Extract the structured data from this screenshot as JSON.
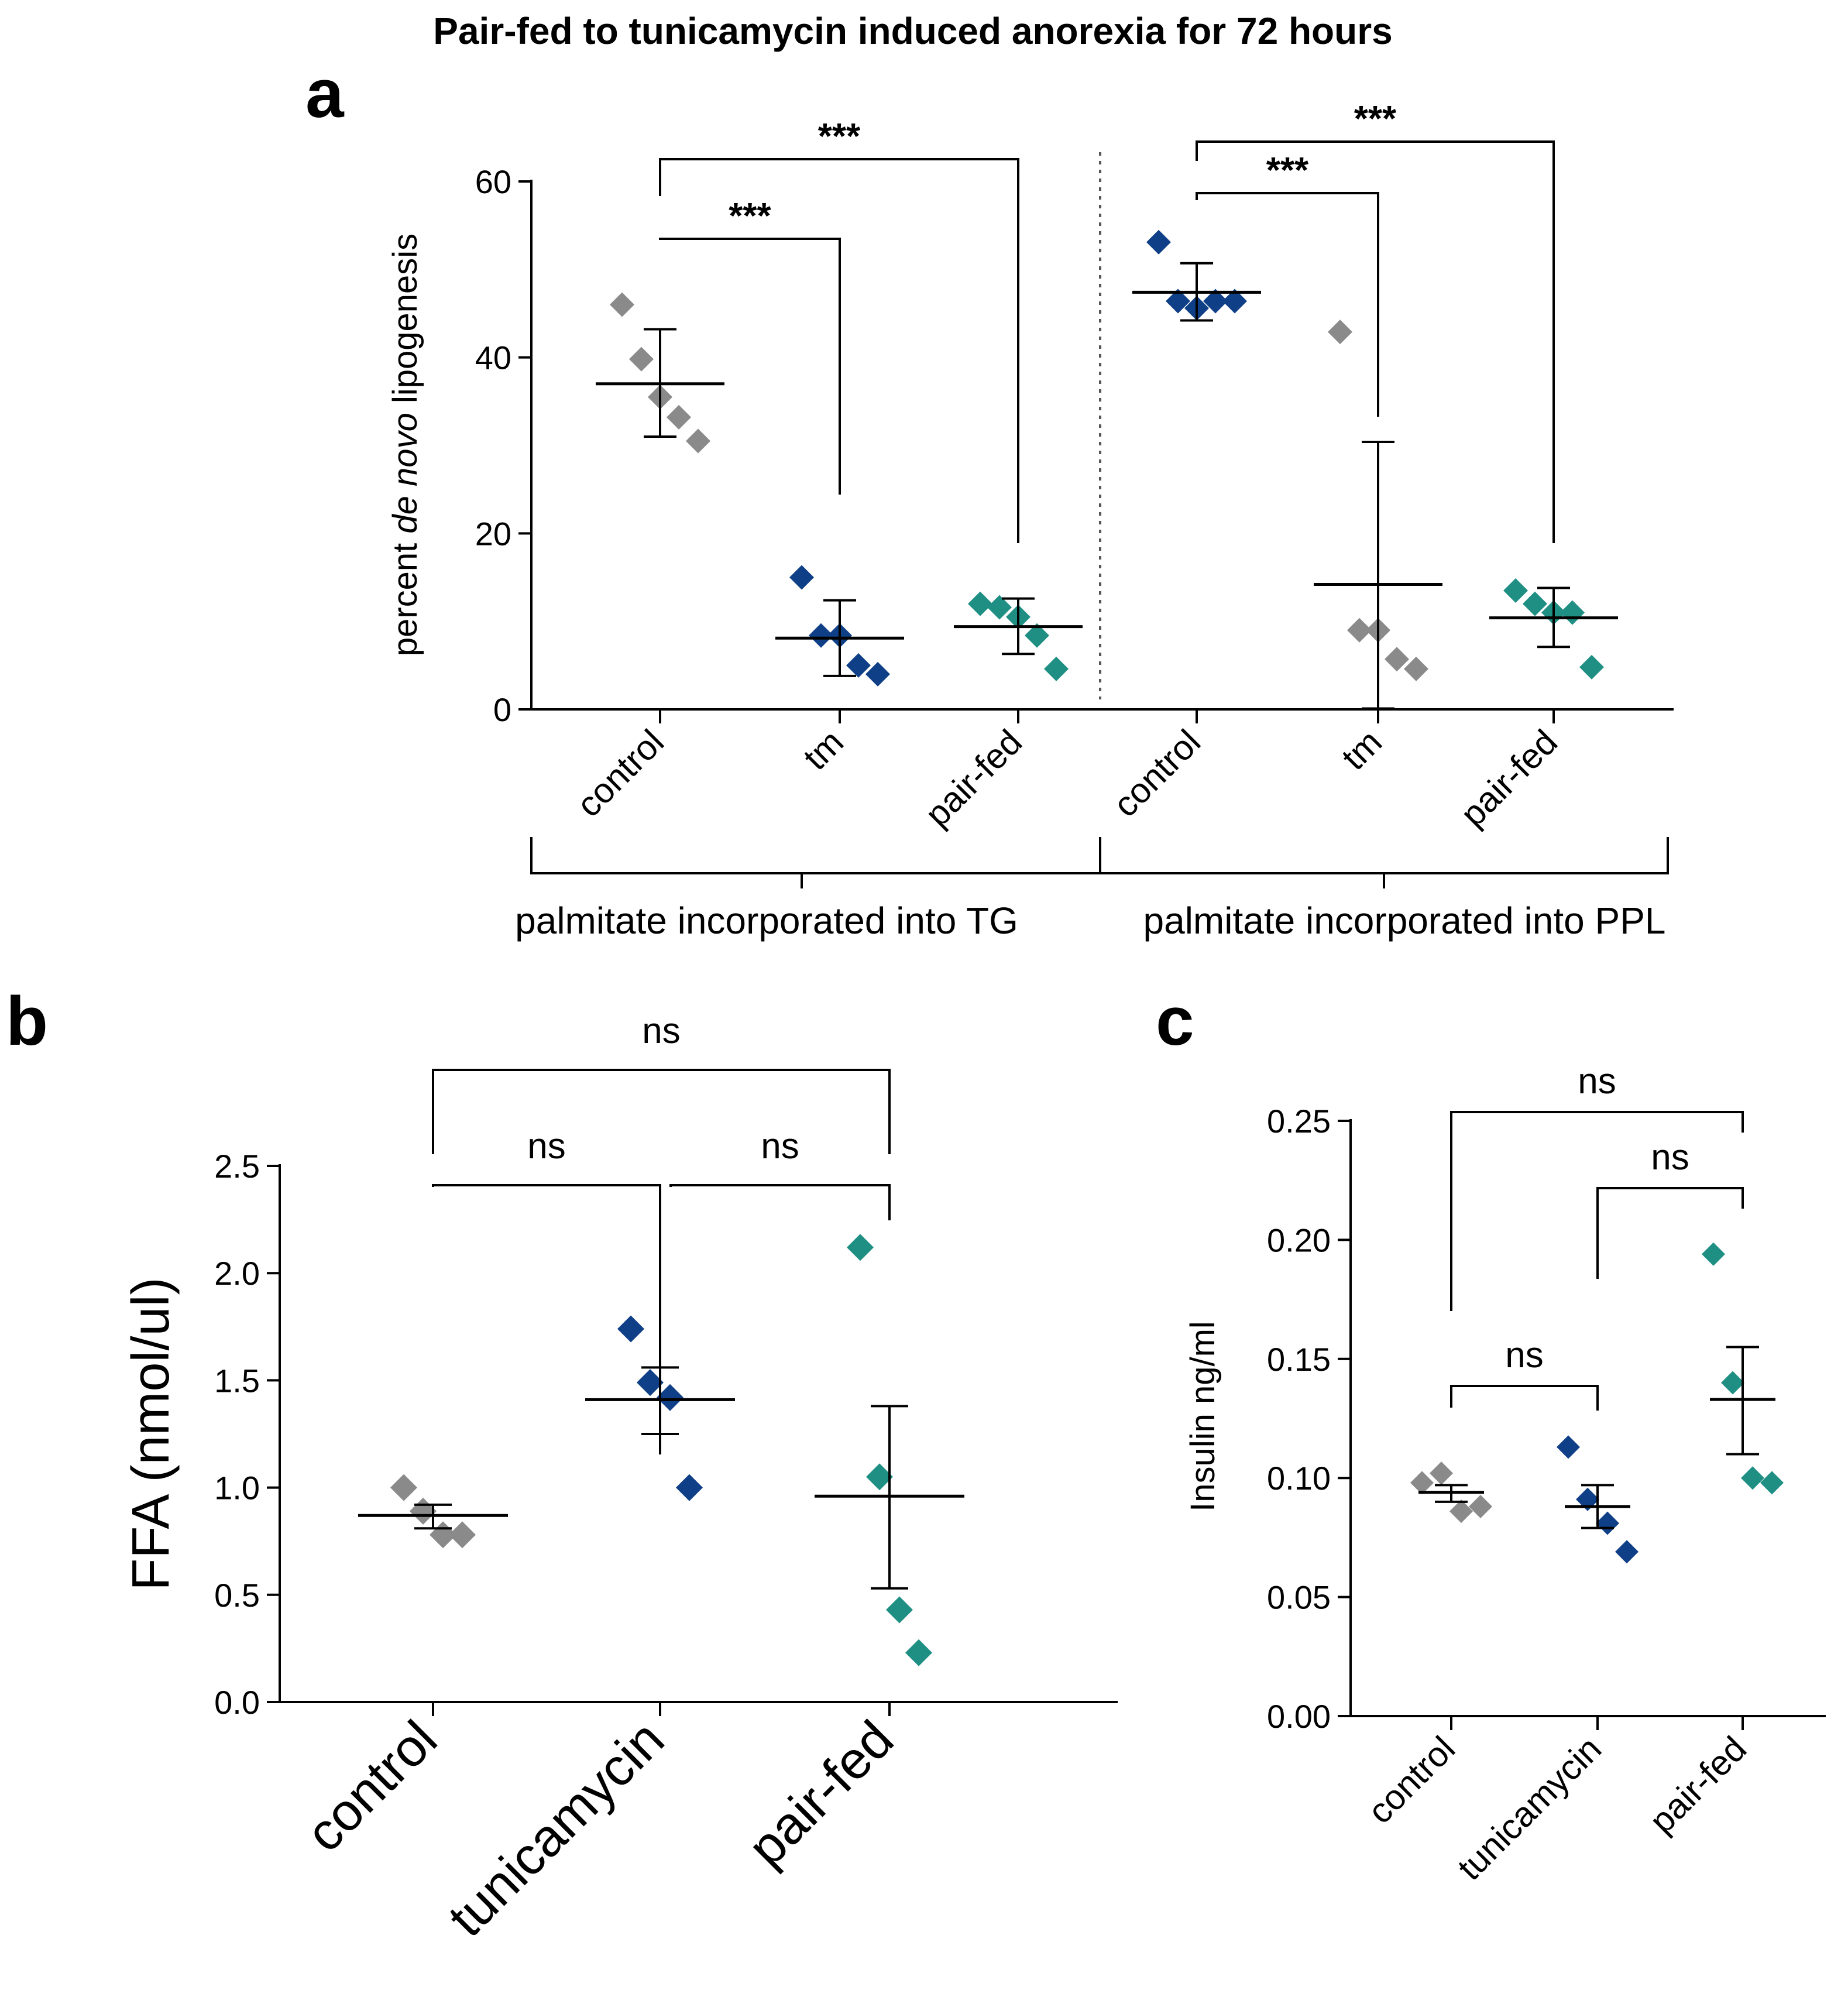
{
  "figure_title": "Pair-fed to tunicamycin induced anorexia for 72 hours",
  "colors": {
    "grey": "#8a8a8a",
    "blue": "#0f3f86",
    "teal": "#1f8f84",
    "line": "#000000",
    "divider": "#555555"
  },
  "chart_data": [
    {
      "id": "a",
      "type": "scatter",
      "panel_label": "a",
      "ylabel_parts": [
        "percent ",
        "de novo",
        " lipogenesis"
      ],
      "ylim": [
        0,
        60
      ],
      "yticks": [
        0,
        20,
        40,
        60
      ],
      "ytick_labels": [
        "0",
        "20",
        "40",
        "60"
      ],
      "categories": [
        "control",
        "tm",
        "pair-fed",
        "control",
        "tm",
        "pair-fed"
      ],
      "groups": [
        {
          "label": "palmitate incorporated into TG",
          "members": [
            0,
            1,
            2
          ]
        },
        {
          "label": "palmitate incorporated into PPL",
          "members": [
            3,
            4,
            5
          ]
        }
      ],
      "series": [
        {
          "name": "control",
          "category": 0,
          "color": "grey",
          "points": [
            46,
            39.8,
            35.5,
            33.2,
            30.5
          ],
          "mean": 37,
          "err": [
            31,
            43.2
          ]
        },
        {
          "name": "tm",
          "category": 1,
          "color": "blue",
          "points": [
            15,
            8.4,
            8.4,
            5,
            4
          ],
          "mean": 8.1,
          "err": [
            3.8,
            12.4
          ]
        },
        {
          "name": "pair-fed",
          "category": 2,
          "color": "teal",
          "points": [
            12,
            11.6,
            10.5,
            8.4,
            4.6
          ],
          "mean": 9.4,
          "err": [
            6.3,
            12.6
          ]
        },
        {
          "name": "control",
          "category": 3,
          "color": "blue",
          "points": [
            53.1,
            46.4,
            45.6,
            46.4,
            46.4
          ],
          "mean": 47.4,
          "err": [
            44.2,
            50.7
          ]
        },
        {
          "name": "tm",
          "category": 4,
          "color": "grey",
          "points": [
            42.9,
            9,
            9,
            5.7,
            4.6
          ],
          "mean": 14.2,
          "err": [
            0.1,
            30.4
          ]
        },
        {
          "name": "pair-fed",
          "category": 5,
          "color": "teal",
          "points": [
            13.5,
            12,
            11,
            11,
            4.8
          ],
          "mean": 10.4,
          "err": [
            7.1,
            13.8
          ]
        }
      ],
      "comparisons": [
        {
          "from": 0,
          "to": 1,
          "label": "***"
        },
        {
          "from": 0,
          "to": 2,
          "label": "***"
        },
        {
          "from": 3,
          "to": 4,
          "label": "***"
        },
        {
          "from": 3,
          "to": 5,
          "label": "***"
        }
      ]
    },
    {
      "id": "b",
      "type": "scatter",
      "panel_label": "b",
      "ylabel": "FFA (nmol/ul)",
      "ylim": [
        0,
        2.5
      ],
      "yticks": [
        0,
        0.5,
        1,
        1.5,
        2,
        2.5
      ],
      "ytick_labels": [
        "0.0",
        "0.5",
        "1.0",
        "1.5",
        "2.0",
        "2.5"
      ],
      "categories": [
        "control",
        "tunicamycin",
        "pair-fed"
      ],
      "series": [
        {
          "name": "control",
          "category": 0,
          "color": "grey",
          "points": [
            1,
            0.89,
            0.78,
            0.78
          ],
          "mean": 0.87,
          "err": [
            0.81,
            0.92
          ]
        },
        {
          "name": "tunicamycin",
          "category": 1,
          "color": "blue",
          "points": [
            1.74,
            1.49,
            1.42,
            1
          ],
          "mean": 1.41,
          "err": [
            1.25,
            1.56
          ]
        },
        {
          "name": "pair-fed",
          "category": 2,
          "color": "teal",
          "points": [
            2.12,
            1.05,
            0.43,
            0.23
          ],
          "mean": 0.96,
          "err": [
            0.53,
            1.38
          ]
        }
      ],
      "comparisons": [
        {
          "from": 0,
          "to": 1,
          "label": "ns"
        },
        {
          "from": 1,
          "to": 2,
          "label": "ns"
        },
        {
          "from": 0,
          "to": 2,
          "label": "ns"
        }
      ]
    },
    {
      "id": "c",
      "type": "scatter",
      "panel_label": "c",
      "ylabel": "Insulin ng/ml",
      "ylim": [
        0,
        0.25
      ],
      "yticks": [
        0,
        0.05,
        0.1,
        0.15,
        0.2,
        0.25
      ],
      "ytick_labels": [
        "0.00",
        "0.05",
        "0.10",
        "0.15",
        "0.20",
        "0.25"
      ],
      "categories": [
        "control",
        "tunicamycin",
        "pair-fed"
      ],
      "series": [
        {
          "name": "control",
          "category": 0,
          "color": "grey",
          "points": [
            0.098,
            0.102,
            0.086,
            0.088
          ],
          "mean": 0.094,
          "err": [
            0.09,
            0.097
          ]
        },
        {
          "name": "tunicamycin",
          "category": 1,
          "color": "blue",
          "points": [
            0.113,
            0.091,
            0.081,
            0.069
          ],
          "mean": 0.088,
          "err": [
            0.079,
            0.097
          ]
        },
        {
          "name": "pair-fed",
          "category": 2,
          "color": "teal",
          "points": [
            0.194,
            0.14,
            0.1,
            0.098
          ],
          "mean": 0.133,
          "err": [
            0.11,
            0.155
          ]
        }
      ],
      "comparisons": [
        {
          "from": 0,
          "to": 1,
          "label": "ns"
        },
        {
          "from": 1,
          "to": 2,
          "label": "ns"
        },
        {
          "from": 0,
          "to": 2,
          "label": "ns"
        }
      ]
    }
  ]
}
